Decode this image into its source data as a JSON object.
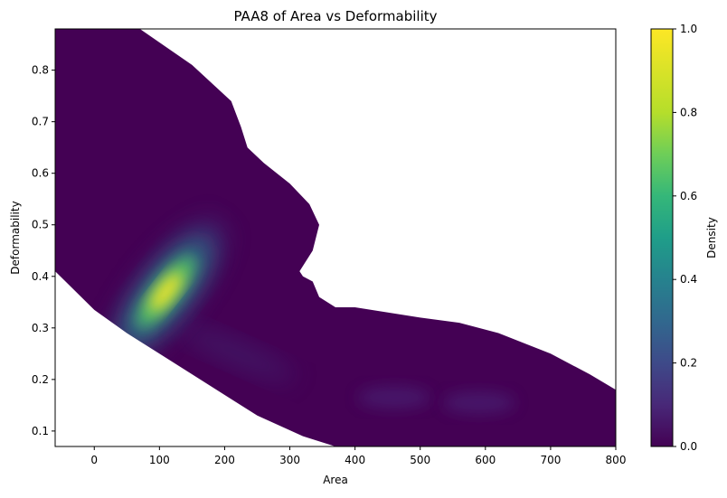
{
  "chart_data": {
    "type": "heatmap",
    "title": "PAA8 of Area vs Deformability",
    "xlabel": "Area",
    "ylabel": "Deformability",
    "xlim": [
      -60,
      800
    ],
    "ylim": [
      0.07,
      0.88
    ],
    "x_ticks": [
      0,
      100,
      200,
      300,
      400,
      500,
      600,
      700,
      800
    ],
    "y_ticks": [
      0.1,
      0.2,
      0.3,
      0.4,
      0.5,
      0.6,
      0.7,
      0.8
    ],
    "colorbar": {
      "label": "Density",
      "range": [
        0.0,
        1.0
      ],
      "ticks": [
        0.0,
        0.2,
        0.4,
        0.6,
        0.8,
        1.0
      ],
      "colormap": "viridis"
    },
    "density_peak": {
      "area": 110,
      "deformability": 0.37,
      "density": 1.0
    },
    "secondary_modes": [
      {
        "area": 460,
        "deformability": 0.165,
        "density": 0.05
      },
      {
        "area": 590,
        "deformability": 0.155,
        "density": 0.07
      }
    ],
    "support_boundary_upper": [
      [
        -60,
        0.88
      ],
      [
        70,
        0.88
      ],
      [
        150,
        0.81
      ],
      [
        210,
        0.74
      ],
      [
        225,
        0.69
      ],
      [
        235,
        0.65
      ],
      [
        260,
        0.62
      ],
      [
        300,
        0.58
      ],
      [
        330,
        0.54
      ],
      [
        345,
        0.5
      ],
      [
        335,
        0.45
      ],
      [
        315,
        0.41
      ],
      [
        320,
        0.4
      ],
      [
        335,
        0.39
      ],
      [
        345,
        0.36
      ],
      [
        370,
        0.34
      ],
      [
        400,
        0.34
      ],
      [
        500,
        0.32
      ],
      [
        560,
        0.31
      ],
      [
        620,
        0.29
      ],
      [
        700,
        0.25
      ],
      [
        760,
        0.21
      ],
      [
        800,
        0.18
      ]
    ],
    "support_boundary_lower": [
      [
        800,
        0.07
      ],
      [
        370,
        0.07
      ],
      [
        320,
        0.09
      ],
      [
        250,
        0.13
      ],
      [
        150,
        0.21
      ],
      [
        50,
        0.29
      ],
      [
        0,
        0.335
      ],
      [
        -60,
        0.41
      ]
    ],
    "grid": false
  }
}
